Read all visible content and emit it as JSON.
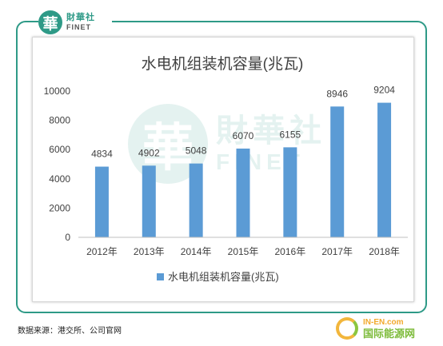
{
  "logo": {
    "mark": "華",
    "name_cn": "財華社",
    "name_en": "FINET"
  },
  "watermark": {
    "mark": "華",
    "name_cn": "財華社",
    "name_en": "FINET"
  },
  "chart_data": {
    "type": "bar",
    "title": "水电机组装机容量(兆瓦)",
    "categories": [
      "2012年",
      "2013年",
      "2014年",
      "2015年",
      "2016年",
      "2017年",
      "2018年"
    ],
    "series": [
      {
        "name": "水电机组装机容量(兆瓦)",
        "values": [
          4834,
          4902,
          5048,
          6070,
          6155,
          8946,
          9204
        ]
      }
    ],
    "ylim": [
      0,
      10000
    ],
    "yticks": [
      0,
      2000,
      4000,
      6000,
      8000,
      10000
    ],
    "grid": false,
    "legend": "bottom",
    "bar_color": "#5b9bd5"
  },
  "footer": {
    "source": "数据来源：港交所、公司官网",
    "brand_en": "IN-EN.com",
    "brand_cn": "国际能源网"
  }
}
